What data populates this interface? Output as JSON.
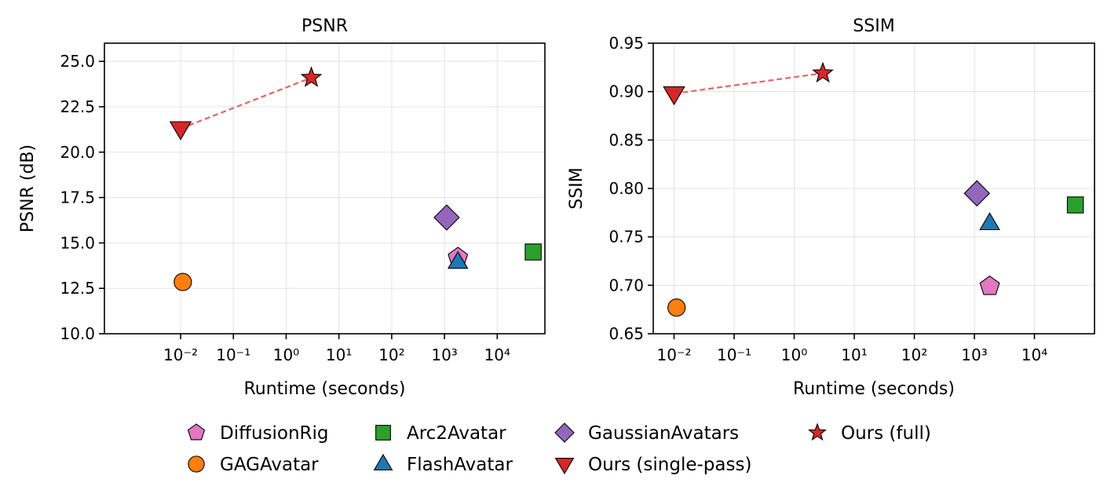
{
  "chart_data": [
    {
      "type": "scatter",
      "title": "PSNR",
      "xlabel": "Runtime (seconds)",
      "ylabel": "PSNR (dB)",
      "xscale": "log",
      "xlim": [
        0.00036,
        80000
      ],
      "ylim": [
        10.0,
        26.0
      ],
      "xticks": [
        "10⁻²",
        "10⁻¹",
        "10⁰",
        "10¹",
        "10²",
        "10³",
        "10⁴"
      ],
      "yticks": [
        "10.0",
        "12.5",
        "15.0",
        "17.5",
        "20.0",
        "22.5",
        "25.0"
      ],
      "grid": true,
      "series": [
        {
          "name": "DiffusionRig",
          "x": 1800,
          "y": 14.2
        },
        {
          "name": "GAGAvatar",
          "x": 0.011,
          "y": 12.85
        },
        {
          "name": "Arc2Avatar",
          "x": 48000,
          "y": 14.5
        },
        {
          "name": "FlashAvatar",
          "x": 1800,
          "y": 13.95
        },
        {
          "name": "GaussianAvatars",
          "x": 1100,
          "y": 16.4
        },
        {
          "name": "Ours (single-pass)",
          "x": 0.01,
          "y": 21.3
        },
        {
          "name": "Ours (full)",
          "x": 3,
          "y": 24.1
        }
      ]
    },
    {
      "type": "scatter",
      "title": "SSIM",
      "xlabel": "Runtime (seconds)",
      "ylabel": "SSIM",
      "xscale": "log",
      "xlim": [
        0.0045,
        100000
      ],
      "ylim": [
        0.65,
        0.95
      ],
      "xticks": [
        "10⁻²",
        "10⁻¹",
        "10⁰",
        "10¹",
        "10²",
        "10³",
        "10⁴"
      ],
      "yticks": [
        "0.65",
        "0.70",
        "0.75",
        "0.80",
        "0.85",
        "0.90",
        "0.95"
      ],
      "grid": true,
      "series": [
        {
          "name": "DiffusionRig",
          "x": 1800,
          "y": 0.699
        },
        {
          "name": "GAGAvatar",
          "x": 0.011,
          "y": 0.677
        },
        {
          "name": "Arc2Avatar",
          "x": 48000,
          "y": 0.783
        },
        {
          "name": "FlashAvatar",
          "x": 1800,
          "y": 0.764
        },
        {
          "name": "GaussianAvatars",
          "x": 1100,
          "y": 0.795
        },
        {
          "name": "Ours (single-pass)",
          "x": 0.01,
          "y": 0.898
        },
        {
          "name": "Ours (full)",
          "x": 3,
          "y": 0.919
        }
      ]
    }
  ],
  "legend": {
    "position": "bottom-center",
    "entries": [
      {
        "label": "DiffusionRig",
        "marker": "pentagon",
        "color": "#e377c2"
      },
      {
        "label": "GAGAvatar",
        "marker": "circle",
        "color": "#ff7f0e"
      },
      {
        "label": "Arc2Avatar",
        "marker": "square",
        "color": "#2ca02c"
      },
      {
        "label": "FlashAvatar",
        "marker": "triangle-up",
        "color": "#1f77b4"
      },
      {
        "label": "GaussianAvatars",
        "marker": "diamond",
        "color": "#9467bd"
      },
      {
        "label": "Ours (single-pass)",
        "marker": "triangle-down",
        "color": "#d62728"
      },
      {
        "label": "Ours (full)",
        "marker": "star",
        "color": "#d62728"
      }
    ]
  },
  "connector": {
    "from": "Ours (single-pass)",
    "to": "Ours (full)",
    "style": "dashed",
    "color": "#e06666"
  }
}
